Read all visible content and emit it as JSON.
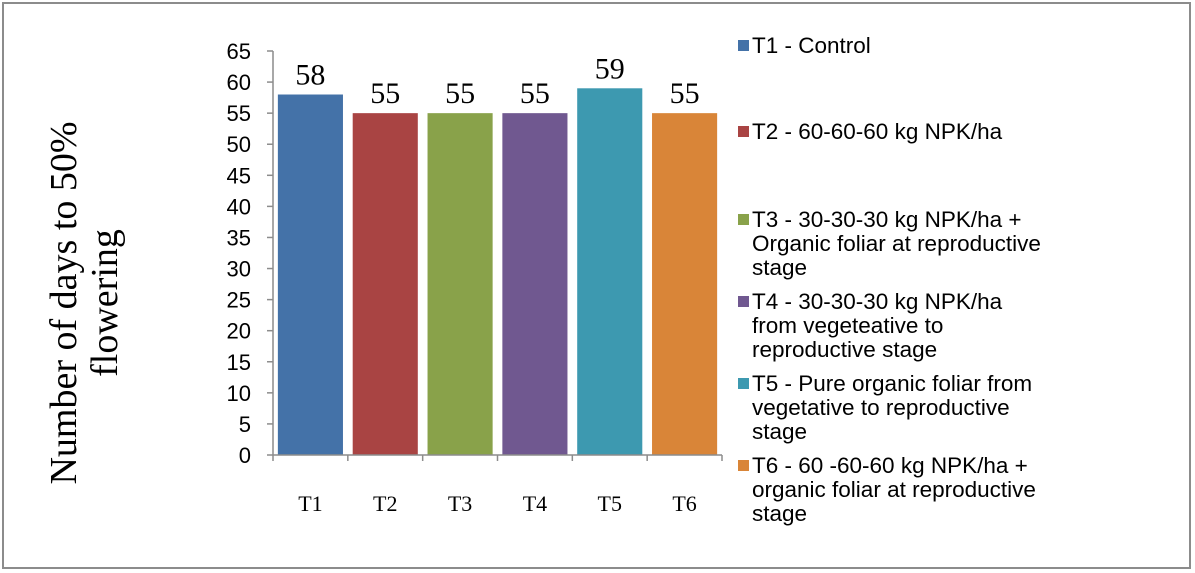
{
  "chart_data": {
    "type": "bar",
    "ylabel_line1": "Number of days to 50%",
    "ylabel_line2": "flowering",
    "xlabel": "",
    "ylim": [
      0,
      65
    ],
    "ytick_step": 5,
    "yticks": [
      "0",
      "5",
      "10",
      "15",
      "20",
      "25",
      "30",
      "35",
      "40",
      "45",
      "50",
      "55",
      "60",
      "65"
    ],
    "categories": [
      "T1",
      "T2",
      "T3",
      "T4",
      "T5",
      "T6"
    ],
    "values": [
      58,
      55,
      55,
      55,
      59,
      55
    ],
    "data_labels": [
      "58",
      "55",
      "55",
      "55",
      "59",
      "55"
    ],
    "colors": [
      "#4472a8",
      "#a94443",
      "#89a24a",
      "#705890",
      "#3d99b0",
      "#d98538"
    ],
    "legend_placement": "right",
    "legend": [
      [
        "T1 - Control"
      ],
      [
        "T2 - 60-60-60 kg NPK/ha"
      ],
      [
        "T3 - 30-30-30 kg NPK/ha +",
        "Organic foliar at reproductive",
        "stage"
      ],
      [
        "T4 - 30-30-30 kg NPK/ha",
        "from vegeteative to",
        "reproductive stage"
      ],
      [
        "T5 - Pure organic foliar from",
        "vegetative to reproductive",
        "stage"
      ],
      [
        "T6 - 60 -60-60 kg NPK/ha +",
        "organic foliar at reproductive",
        "stage"
      ]
    ]
  }
}
